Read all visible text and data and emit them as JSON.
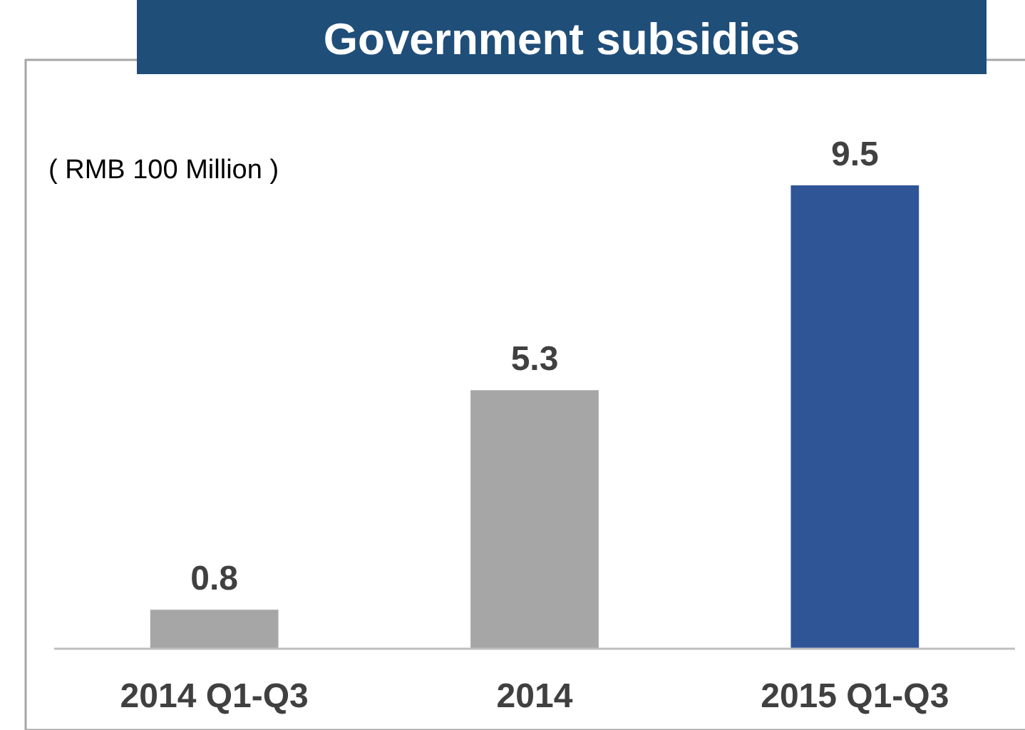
{
  "chart_data": {
    "type": "bar",
    "title": "Government subsidies",
    "annotations": [
      "( RMB 100 Million )"
    ],
    "categories": [
      "2014 Q1-Q3",
      "2014",
      "2015 Q1-Q3"
    ],
    "values": [
      0.8,
      5.3,
      9.5
    ],
    "colors": [
      "#a6a6a6",
      "#a6a6a6",
      "#2f5597"
    ],
    "data_labels": true
  }
}
